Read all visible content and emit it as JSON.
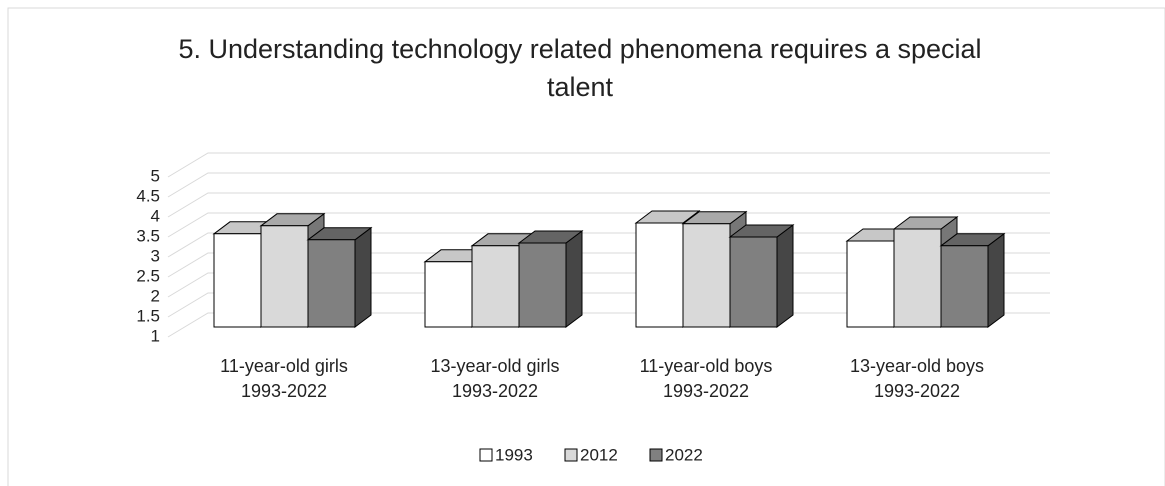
{
  "chart_data": {
    "type": "bar3d",
    "title": "5. Understanding technology related phenomena requires a special talent",
    "categories": [
      "11-year-old girls\n1993-2022",
      "13-year-old girls\n1993-2022",
      "11-year-old boys\n1993-2022",
      "13-year-old boys\n1993-2022"
    ],
    "series": [
      {
        "name": "1993",
        "color": "#ffffff",
        "values": [
          3.33,
          2.63,
          3.6,
          3.15
        ]
      },
      {
        "name": "2012",
        "color": "#d9d9d9",
        "values": [
          3.53,
          3.03,
          3.58,
          3.45
        ]
      },
      {
        "name": "2022",
        "color": "#808080",
        "values": [
          3.18,
          3.1,
          3.25,
          3.03
        ]
      }
    ],
    "ylim": [
      1,
      5
    ],
    "yticks": [
      1,
      1.5,
      2,
      2.5,
      3,
      3.5,
      4,
      4.5,
      5
    ],
    "grid": true,
    "legend": "bottom"
  }
}
